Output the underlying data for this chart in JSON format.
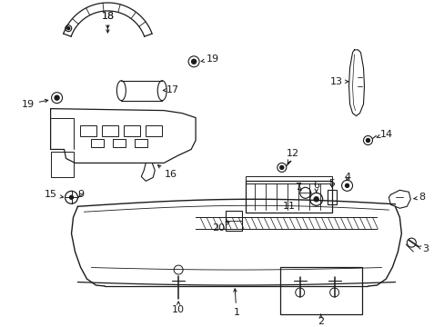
{
  "bg_color": "#ffffff",
  "fig_width": 4.89,
  "fig_height": 3.6,
  "dpi": 100,
  "line_color": "#1a1a1a",
  "label_fontsize": 8.0
}
